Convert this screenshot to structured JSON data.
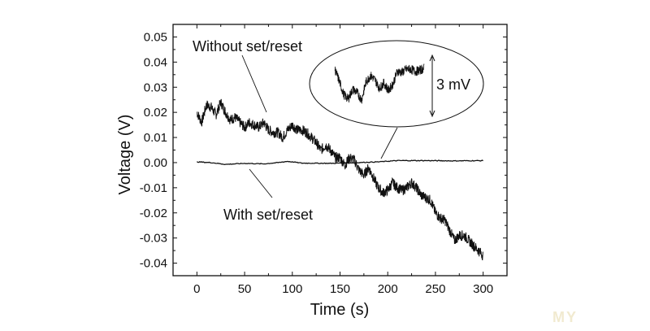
{
  "chart_data": {
    "type": "line",
    "title": "",
    "xlabel": "Time (s)",
    "ylabel": "Voltage (V)",
    "xlim": [
      -25,
      325
    ],
    "ylim": [
      -0.045,
      0.055
    ],
    "xticks": [
      "0",
      "50",
      "100",
      "150",
      "200",
      "250",
      "300"
    ],
    "xtick_values": [
      0,
      50,
      100,
      150,
      200,
      250,
      300
    ],
    "yticks": [
      "0.05",
      "0.04",
      "0.03",
      "0.02",
      "0.01",
      "0.00",
      "-0.01",
      "-0.02",
      "-0.03",
      "-0.04"
    ],
    "ytick_values": [
      0.05,
      0.04,
      0.03,
      0.02,
      0.01,
      0.0,
      -0.01,
      -0.02,
      -0.03,
      -0.04
    ],
    "grid": false,
    "series": [
      {
        "name": "Without set/reset",
        "x": [
          0,
          5,
          10,
          15,
          20,
          25,
          30,
          35,
          40,
          45,
          50,
          55,
          60,
          65,
          70,
          75,
          80,
          85,
          90,
          95,
          100,
          105,
          110,
          115,
          120,
          125,
          130,
          135,
          140,
          145,
          150,
          155,
          160,
          165,
          170,
          175,
          180,
          185,
          190,
          195,
          200,
          205,
          210,
          215,
          220,
          225,
          230,
          235,
          240,
          245,
          250,
          255,
          260,
          265,
          270,
          275,
          280,
          285,
          290,
          295,
          300
        ],
        "y": [
          0.02,
          0.016,
          0.023,
          0.022,
          0.019,
          0.024,
          0.02,
          0.017,
          0.018,
          0.016,
          0.014,
          0.016,
          0.015,
          0.014,
          0.016,
          0.013,
          0.012,
          0.012,
          0.01,
          0.013,
          0.015,
          0.013,
          0.013,
          0.012,
          0.01,
          0.008,
          0.005,
          0.007,
          0.005,
          0.002,
          0.002,
          -0.001,
          0.002,
          0.001,
          -0.003,
          -0.005,
          -0.002,
          -0.006,
          -0.01,
          -0.012,
          -0.011,
          -0.008,
          -0.01,
          -0.011,
          -0.01,
          -0.008,
          -0.01,
          -0.013,
          -0.014,
          -0.015,
          -0.02,
          -0.022,
          -0.023,
          -0.027,
          -0.031,
          -0.029,
          -0.029,
          -0.031,
          -0.033,
          -0.035,
          -0.037
        ]
      },
      {
        "name": "With set/reset",
        "x": [
          0,
          15,
          30,
          50,
          70,
          85,
          95,
          110,
          140,
          160,
          190,
          210,
          240,
          270,
          300
        ],
        "y": [
          0.0003,
          0.0,
          -0.0007,
          -0.0003,
          -0.0005,
          0.0,
          0.0005,
          -0.0002,
          -0.0003,
          -0.0001,
          0.0003,
          0.0008,
          0.0008,
          0.0007,
          0.0008
        ]
      }
    ],
    "annotations": [
      "Without set/reset",
      "With set/reset",
      "3 mV"
    ],
    "inset": {
      "label": "3 mV",
      "scale_mv": 3,
      "y_mv": [
        1.6,
        0.5,
        -0.8,
        -1.2,
        -0.3,
        -0.6,
        -1.3,
        0.4,
        1.0,
        0.6,
        -0.2,
        0.3,
        -0.4,
        0.2,
        1.4,
        1.3,
        1.6,
        1.6,
        1.4,
        1.5,
        1.7
      ]
    }
  },
  "watermark": "MY"
}
